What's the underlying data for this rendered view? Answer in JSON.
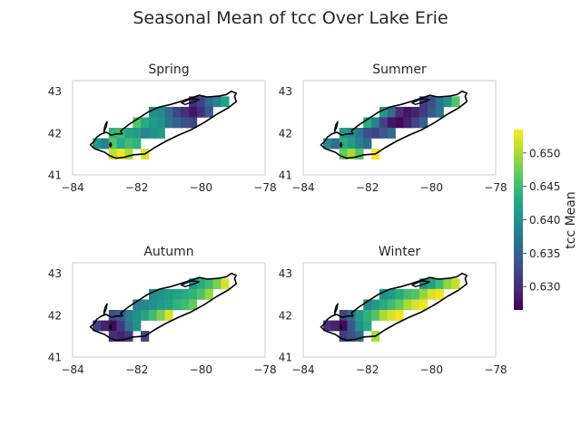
{
  "figure_title": "Seasonal Mean of tcc Over Lake Erie",
  "colorbar": {
    "label": "tcc Mean",
    "range": [
      0.6265,
      0.6535
    ],
    "ticks": [
      0.63,
      0.635,
      0.64,
      0.645,
      0.65
    ],
    "tick_labels": [
      "0.630",
      "0.635",
      "0.640",
      "0.645",
      "0.650"
    ],
    "colormap": "viridis"
  },
  "chart_data": [
    {
      "type": "heatmap",
      "title": "Spring",
      "xlim": [
        -84,
        -78
      ],
      "ylim": [
        41,
        43.25
      ],
      "xticks": [
        -84,
        -82,
        -80,
        -78
      ],
      "xtick_labels": [
        "−84",
        "−82",
        "−80",
        "−78"
      ],
      "yticks": [
        41,
        42,
        43
      ],
      "ytick_labels": [
        "41",
        "42",
        "43"
      ],
      "grid": false,
      "cells": [
        [
          -80.25,
          42.75,
          0.63
        ],
        [
          -80.0,
          42.75,
          0.632
        ],
        [
          -79.75,
          42.75,
          0.636
        ],
        [
          -79.5,
          42.75,
          0.638
        ],
        [
          -79.25,
          42.75,
          0.642
        ],
        [
          -81.5,
          42.5,
          0.64
        ],
        [
          -81.25,
          42.5,
          0.639
        ],
        [
          -81.0,
          42.5,
          0.636
        ],
        [
          -80.75,
          42.5,
          0.632
        ],
        [
          -80.5,
          42.5,
          0.63
        ],
        [
          -80.25,
          42.5,
          0.628
        ],
        [
          -80.0,
          42.5,
          0.63
        ],
        [
          -79.75,
          42.5,
          0.634
        ],
        [
          -82.0,
          42.25,
          0.646
        ],
        [
          -81.75,
          42.25,
          0.643
        ],
        [
          -81.5,
          42.25,
          0.641
        ],
        [
          -81.25,
          42.25,
          0.64
        ],
        [
          -81.0,
          42.25,
          0.637
        ],
        [
          -80.75,
          42.25,
          0.635
        ],
        [
          -80.5,
          42.25,
          0.633
        ],
        [
          -80.25,
          42.25,
          0.632
        ],
        [
          -82.75,
          42.0,
          0.644
        ],
        [
          -82.5,
          42.0,
          0.645
        ],
        [
          -82.25,
          42.0,
          0.642
        ],
        [
          -82.0,
          42.0,
          0.641
        ],
        [
          -81.75,
          42.0,
          0.639
        ],
        [
          -81.5,
          42.0,
          0.64
        ],
        [
          -81.25,
          42.0,
          0.641
        ],
        [
          -83.25,
          41.75,
          0.641
        ],
        [
          -83.0,
          41.75,
          0.638
        ],
        [
          -82.75,
          41.75,
          0.646
        ],
        [
          -82.5,
          41.75,
          0.643
        ],
        [
          -82.25,
          41.75,
          0.645
        ],
        [
          -82.0,
          41.75,
          0.644
        ],
        [
          -82.75,
          41.5,
          0.651
        ],
        [
          -82.5,
          41.5,
          0.653
        ],
        [
          -82.25,
          41.5,
          0.65
        ],
        [
          -81.75,
          41.5,
          0.652
        ]
      ]
    },
    {
      "type": "heatmap",
      "title": "Summer",
      "xlim": [
        -84,
        -78
      ],
      "ylim": [
        41,
        43.25
      ],
      "xticks": [
        -84,
        -82,
        -80,
        -78
      ],
      "xtick_labels": [
        "−84",
        "−82",
        "−80",
        "−78"
      ],
      "yticks": [
        41,
        42,
        43
      ],
      "ytick_labels": [
        "41",
        "42",
        "43"
      ],
      "grid": false,
      "cells": [
        [
          -80.25,
          42.75,
          0.631
        ],
        [
          -80.0,
          42.75,
          0.633
        ],
        [
          -79.75,
          42.75,
          0.637
        ],
        [
          -79.5,
          42.75,
          0.64
        ],
        [
          -79.25,
          42.75,
          0.646
        ],
        [
          -81.5,
          42.5,
          0.641
        ],
        [
          -81.25,
          42.5,
          0.636
        ],
        [
          -81.0,
          42.5,
          0.63
        ],
        [
          -80.75,
          42.5,
          0.628
        ],
        [
          -80.5,
          42.5,
          0.629
        ],
        [
          -80.25,
          42.5,
          0.631
        ],
        [
          -80.0,
          42.5,
          0.634
        ],
        [
          -79.75,
          42.5,
          0.637
        ],
        [
          -82.0,
          42.25,
          0.643
        ],
        [
          -81.75,
          42.25,
          0.638
        ],
        [
          -81.5,
          42.25,
          0.632
        ],
        [
          -81.25,
          42.25,
          0.628
        ],
        [
          -81.0,
          42.25,
          0.627
        ],
        [
          -80.75,
          42.25,
          0.629
        ],
        [
          -80.5,
          42.25,
          0.632
        ],
        [
          -80.25,
          42.25,
          0.635
        ],
        [
          -82.75,
          42.0,
          0.641
        ],
        [
          -82.5,
          42.0,
          0.64
        ],
        [
          -82.25,
          42.0,
          0.637
        ],
        [
          -82.0,
          42.0,
          0.633
        ],
        [
          -81.75,
          42.0,
          0.632
        ],
        [
          -81.5,
          42.0,
          0.634
        ],
        [
          -81.25,
          42.0,
          0.636
        ],
        [
          -83.25,
          41.75,
          0.639
        ],
        [
          -83.0,
          41.75,
          0.636
        ],
        [
          -82.75,
          41.75,
          0.643
        ],
        [
          -82.5,
          41.75,
          0.641
        ],
        [
          -82.25,
          41.75,
          0.638
        ],
        [
          -82.0,
          41.75,
          0.636
        ],
        [
          -82.75,
          41.5,
          0.647
        ],
        [
          -82.5,
          41.5,
          0.65
        ],
        [
          -82.25,
          41.5,
          0.646
        ],
        [
          -81.75,
          41.5,
          0.653
        ]
      ]
    },
    {
      "type": "heatmap",
      "title": "Autumn",
      "xlim": [
        -84,
        -78
      ],
      "ylim": [
        41,
        43.25
      ],
      "xticks": [
        -84,
        -82,
        -80,
        -78
      ],
      "xtick_labels": [
        "−84",
        "−82",
        "−80",
        "−78"
      ],
      "yticks": [
        41,
        42,
        43
      ],
      "ytick_labels": [
        "41",
        "42",
        "43"
      ],
      "grid": false,
      "cells": [
        [
          -80.25,
          42.75,
          0.641
        ],
        [
          -80.0,
          42.75,
          0.643
        ],
        [
          -79.75,
          42.75,
          0.645
        ],
        [
          -79.5,
          42.75,
          0.648
        ],
        [
          -79.25,
          42.75,
          0.652
        ],
        [
          -81.5,
          42.5,
          0.639
        ],
        [
          -81.25,
          42.5,
          0.64
        ],
        [
          -81.0,
          42.5,
          0.641
        ],
        [
          -80.75,
          42.5,
          0.642
        ],
        [
          -80.5,
          42.5,
          0.643
        ],
        [
          -80.25,
          42.5,
          0.644
        ],
        [
          -80.0,
          42.5,
          0.646
        ],
        [
          -79.75,
          42.5,
          0.649
        ],
        [
          -82.0,
          42.25,
          0.638
        ],
        [
          -81.75,
          42.25,
          0.639
        ],
        [
          -81.5,
          42.25,
          0.64
        ],
        [
          -81.25,
          42.25,
          0.641
        ],
        [
          -81.0,
          42.25,
          0.642
        ],
        [
          -80.75,
          42.25,
          0.644
        ],
        [
          -80.5,
          42.25,
          0.645
        ],
        [
          -80.25,
          42.25,
          0.647
        ],
        [
          -82.75,
          42.0,
          0.633
        ],
        [
          -82.5,
          42.0,
          0.634
        ],
        [
          -82.25,
          42.0,
          0.638
        ],
        [
          -82.0,
          42.0,
          0.64
        ],
        [
          -81.75,
          42.0,
          0.642
        ],
        [
          -81.5,
          42.0,
          0.645
        ],
        [
          -81.25,
          42.0,
          0.648
        ],
        [
          -81.0,
          42.0,
          0.652
        ],
        [
          -83.25,
          41.75,
          0.632
        ],
        [
          -83.0,
          41.75,
          0.629
        ],
        [
          -82.75,
          41.75,
          0.627
        ],
        [
          -82.5,
          41.75,
          0.631
        ],
        [
          -82.25,
          41.75,
          0.637
        ],
        [
          -82.0,
          41.75,
          0.64
        ],
        [
          -82.75,
          41.5,
          0.63
        ],
        [
          -82.5,
          41.5,
          0.629
        ],
        [
          -82.25,
          41.5,
          0.631
        ],
        [
          -81.75,
          41.5,
          0.632
        ]
      ]
    },
    {
      "type": "heatmap",
      "title": "Winter",
      "xlim": [
        -84,
        -78
      ],
      "ylim": [
        41,
        43.25
      ],
      "xticks": [
        -84,
        -82,
        -80,
        -78
      ],
      "xtick_labels": [
        "−84",
        "−82",
        "−80",
        "−78"
      ],
      "yticks": [
        41,
        42,
        43
      ],
      "ytick_labels": [
        "41",
        "42",
        "43"
      ],
      "grid": false,
      "cells": [
        [
          -80.25,
          42.75,
          0.64
        ],
        [
          -80.0,
          42.75,
          0.642
        ],
        [
          -79.75,
          42.75,
          0.645
        ],
        [
          -79.5,
          42.75,
          0.649
        ],
        [
          -79.25,
          42.75,
          0.651
        ],
        [
          -81.5,
          42.5,
          0.64
        ],
        [
          -81.25,
          42.5,
          0.641
        ],
        [
          -81.0,
          42.5,
          0.643
        ],
        [
          -80.75,
          42.5,
          0.645
        ],
        [
          -80.5,
          42.5,
          0.646
        ],
        [
          -80.25,
          42.5,
          0.649
        ],
        [
          -80.0,
          42.5,
          0.652
        ],
        [
          -79.75,
          42.5,
          0.653
        ],
        [
          -82.0,
          42.25,
          0.639
        ],
        [
          -81.75,
          42.25,
          0.641
        ],
        [
          -81.5,
          42.25,
          0.643
        ],
        [
          -81.25,
          42.25,
          0.645
        ],
        [
          -81.0,
          42.25,
          0.647
        ],
        [
          -80.75,
          42.25,
          0.65
        ],
        [
          -80.5,
          42.25,
          0.652
        ],
        [
          -80.25,
          42.25,
          0.653
        ],
        [
          -82.75,
          42.0,
          0.632
        ],
        [
          -82.5,
          42.0,
          0.636
        ],
        [
          -82.25,
          42.0,
          0.641
        ],
        [
          -82.0,
          42.0,
          0.644
        ],
        [
          -81.75,
          42.0,
          0.646
        ],
        [
          -81.5,
          42.0,
          0.65
        ],
        [
          -81.25,
          42.0,
          0.652
        ],
        [
          -81.0,
          42.0,
          0.653
        ],
        [
          -83.25,
          41.75,
          0.63
        ],
        [
          -83.0,
          41.75,
          0.629
        ],
        [
          -82.75,
          41.75,
          0.627
        ],
        [
          -82.5,
          41.75,
          0.634
        ],
        [
          -82.25,
          41.75,
          0.64
        ],
        [
          -82.0,
          41.75,
          0.643
        ],
        [
          -82.75,
          41.5,
          0.631
        ],
        [
          -82.5,
          41.5,
          0.633
        ],
        [
          -82.25,
          41.5,
          0.636
        ],
        [
          -81.75,
          41.5,
          0.65
        ]
      ]
    }
  ]
}
